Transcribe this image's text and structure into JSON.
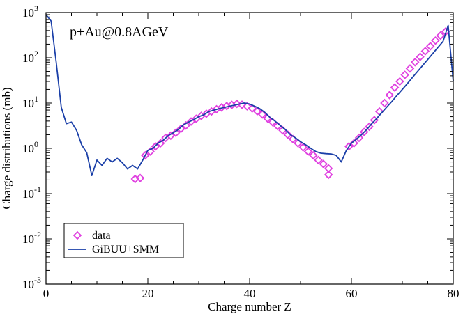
{
  "chart_data": {
    "type": "scatter",
    "annotation": "p+Au@0.8AGeV",
    "xlabel": "Charge number Z",
    "ylabel": "Charge distributions (mb)",
    "xlim": [
      0,
      80
    ],
    "ylim": [
      0.001,
      1000
    ],
    "yscale": "log",
    "x_ticks": [
      0,
      20,
      40,
      60,
      80
    ],
    "x_tick_labels": [
      "0",
      "20",
      "40",
      "60",
      "80"
    ],
    "y_ticks": [
      0.001,
      0.01,
      0.1,
      1,
      10,
      100,
      1000
    ],
    "y_tick_labels": [
      {
        "base": "10",
        "exp": "-3"
      },
      {
        "base": "10",
        "exp": "-2"
      },
      {
        "base": "10",
        "exp": "-1"
      },
      {
        "base": "10",
        "exp": "0"
      },
      {
        "base": "10",
        "exp": "1"
      },
      {
        "base": "10",
        "exp": "2"
      },
      {
        "base": "10",
        "exp": "3"
      }
    ],
    "grid": false,
    "legend_position": "bottom-left",
    "series": [
      {
        "name": "data",
        "kind": "markers",
        "marker": "diamond",
        "color": "#e040e0",
        "points": [
          [
            17.5,
            0.21
          ],
          [
            18.5,
            0.22
          ],
          [
            19.5,
            0.7
          ],
          [
            20.5,
            0.85
          ],
          [
            21.5,
            1.1
          ],
          [
            22.5,
            1.3
          ],
          [
            23.5,
            1.7
          ],
          [
            24.5,
            1.9
          ],
          [
            25.5,
            2.2
          ],
          [
            26.5,
            2.7
          ],
          [
            27.5,
            3.2
          ],
          [
            28.5,
            3.9
          ],
          [
            29.5,
            4.5
          ],
          [
            30.5,
            5.2
          ],
          [
            31.5,
            5.8
          ],
          [
            32.5,
            6.5
          ],
          [
            33.5,
            7.3
          ],
          [
            34.5,
            8.0
          ],
          [
            35.5,
            8.6
          ],
          [
            36.5,
            9.1
          ],
          [
            37.5,
            9.6
          ],
          [
            38.5,
            9.2
          ],
          [
            39.5,
            8.5
          ],
          [
            40.5,
            7.6
          ],
          [
            41.5,
            6.6
          ],
          [
            42.5,
            5.6
          ],
          [
            43.5,
            4.6
          ],
          [
            44.5,
            3.8
          ],
          [
            45.5,
            3.1
          ],
          [
            46.5,
            2.5
          ],
          [
            47.5,
            2.0
          ],
          [
            48.5,
            1.6
          ],
          [
            49.5,
            1.3
          ],
          [
            50.5,
            1.05
          ],
          [
            51.5,
            0.85
          ],
          [
            52.5,
            0.7
          ],
          [
            53.5,
            0.55
          ],
          [
            54.5,
            0.45
          ],
          [
            55.5,
            0.36
          ],
          [
            55.5,
            0.26
          ],
          [
            59.5,
            1.1
          ],
          [
            60.5,
            1.3
          ],
          [
            61.5,
            1.7
          ],
          [
            62.5,
            2.3
          ],
          [
            63.5,
            3.0
          ],
          [
            64.5,
            4.2
          ],
          [
            65.5,
            6.5
          ],
          [
            66.5,
            10.0
          ],
          [
            67.5,
            15.0
          ],
          [
            68.5,
            22.0
          ],
          [
            69.5,
            30.0
          ],
          [
            70.5,
            42.0
          ],
          [
            71.5,
            58.0
          ],
          [
            72.5,
            80.0
          ],
          [
            73.5,
            105.0
          ],
          [
            74.5,
            140.0
          ],
          [
            75.5,
            180.0
          ],
          [
            76.5,
            240.0
          ],
          [
            77.5,
            310.0
          ],
          [
            78.5,
            380.0
          ]
        ]
      },
      {
        "name": "GiBUU+SMM",
        "kind": "line",
        "color": "#1a3fa8",
        "points": [
          [
            0.0,
            900.0
          ],
          [
            1.0,
            650.0
          ],
          [
            2.0,
            80.0
          ],
          [
            3.0,
            8.0
          ],
          [
            4.0,
            3.5
          ],
          [
            5.0,
            3.8
          ],
          [
            6.0,
            2.5
          ],
          [
            7.0,
            1.2
          ],
          [
            8.0,
            0.8
          ],
          [
            9.0,
            0.25
          ],
          [
            10.0,
            0.55
          ],
          [
            11.0,
            0.42
          ],
          [
            12.0,
            0.6
          ],
          [
            13.0,
            0.5
          ],
          [
            14.0,
            0.6
          ],
          [
            15.0,
            0.48
          ],
          [
            16.0,
            0.35
          ],
          [
            17.0,
            0.42
          ],
          [
            18.0,
            0.35
          ],
          [
            19.0,
            0.55
          ],
          [
            20.0,
            0.9
          ],
          [
            21.0,
            1.0
          ],
          [
            22.0,
            1.3
          ],
          [
            23.0,
            1.5
          ],
          [
            24.0,
            1.9
          ],
          [
            25.0,
            2.2
          ],
          [
            26.0,
            2.6
          ],
          [
            27.0,
            3.3
          ],
          [
            28.0,
            3.8
          ],
          [
            29.0,
            4.3
          ],
          [
            30.0,
            5.0
          ],
          [
            31.0,
            5.5
          ],
          [
            32.0,
            6.5
          ],
          [
            33.0,
            7.0
          ],
          [
            34.0,
            7.5
          ],
          [
            35.0,
            8.0
          ],
          [
            36.0,
            8.5
          ],
          [
            37.0,
            9.0
          ],
          [
            38.0,
            9.5
          ],
          [
            39.0,
            10.0
          ],
          [
            40.0,
            9.5
          ],
          [
            41.0,
            8.5
          ],
          [
            42.0,
            7.5
          ],
          [
            43.0,
            6.2
          ],
          [
            44.0,
            4.8
          ],
          [
            45.0,
            4.0
          ],
          [
            46.0,
            3.2
          ],
          [
            47.0,
            2.6
          ],
          [
            48.0,
            2.0
          ],
          [
            49.0,
            1.7
          ],
          [
            50.0,
            1.4
          ],
          [
            51.0,
            1.2
          ],
          [
            52.0,
            1.0
          ],
          [
            53.0,
            0.85
          ],
          [
            54.0,
            0.78
          ],
          [
            55.0,
            0.76
          ],
          [
            56.0,
            0.75
          ],
          [
            57.0,
            0.7
          ],
          [
            58.0,
            0.5
          ],
          [
            59.0,
            0.9
          ],
          [
            60.0,
            1.3
          ],
          [
            61.0,
            1.6
          ],
          [
            62.0,
            2.0
          ],
          [
            63.0,
            2.6
          ],
          [
            64.0,
            3.5
          ],
          [
            65.0,
            4.6
          ],
          [
            66.0,
            6.2
          ],
          [
            67.0,
            8.3
          ],
          [
            68.0,
            11.0
          ],
          [
            69.0,
            15.0
          ],
          [
            70.0,
            20.0
          ],
          [
            71.0,
            27.0
          ],
          [
            72.0,
            37.0
          ],
          [
            73.0,
            50.0
          ],
          [
            74.0,
            68.0
          ],
          [
            75.0,
            92.0
          ],
          [
            76.0,
            125.0
          ],
          [
            77.0,
            170.0
          ],
          [
            78.0,
            230.0
          ],
          [
            79.0,
            520.0
          ],
          [
            80.0,
            30.0
          ]
        ]
      }
    ]
  }
}
